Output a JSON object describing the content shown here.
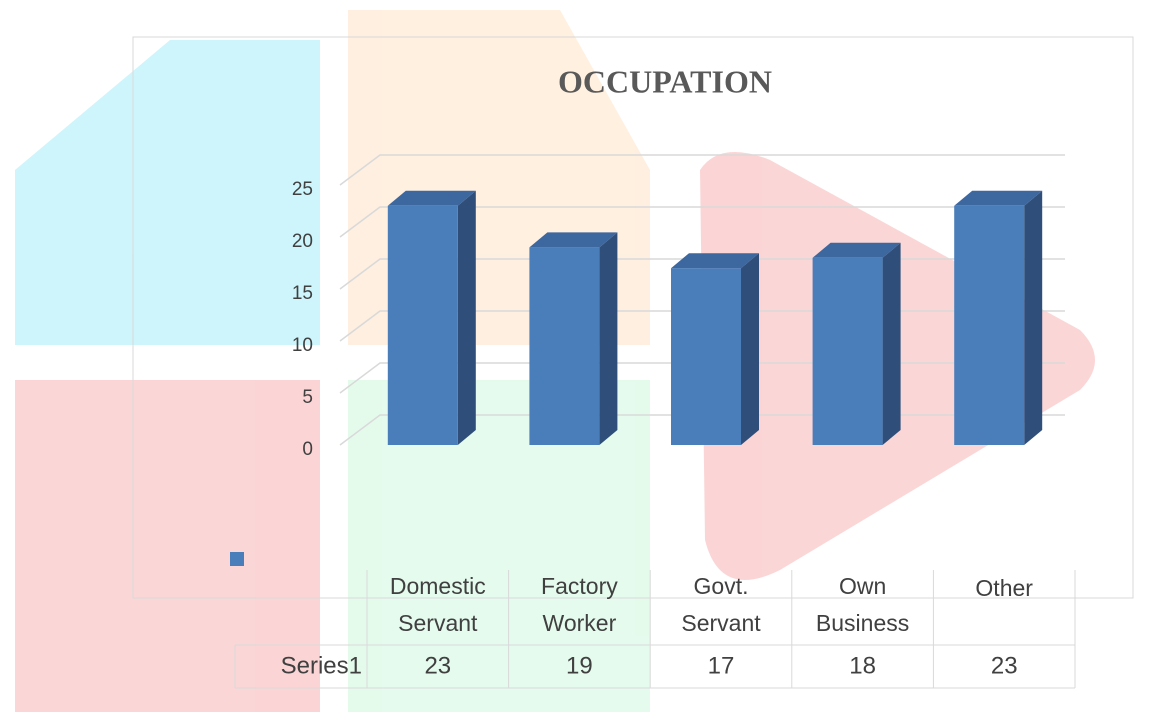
{
  "chart_data": {
    "type": "bar3d",
    "title": "OCCUPATION",
    "categories": [
      "Domestic Servant",
      "Factory Worker",
      "Govt. Servant",
      "Own Business",
      "Other"
    ],
    "series": [
      {
        "name": "Series1",
        "color": "#4a7ebb",
        "values": [
          23,
          19,
          17,
          18,
          23
        ]
      }
    ],
    "ylim": [
      0,
      25
    ],
    "yticks": [
      0,
      5,
      10,
      15,
      20,
      25
    ],
    "grid": true,
    "data_table": true
  }
}
